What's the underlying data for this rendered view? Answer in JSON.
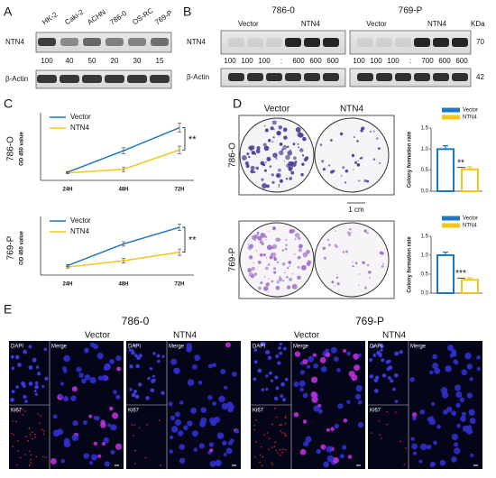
{
  "panel_labels": [
    "A",
    "B",
    "C",
    "D",
    "E"
  ],
  "blot_a": {
    "lanes": [
      "HK-2",
      "Caki-2",
      "ACHN",
      "786-0",
      "OS-RC",
      "769-P"
    ],
    "rows": [
      "NTN4",
      "β-Actin"
    ],
    "quant": [
      100,
      40,
      50,
      20,
      30,
      15
    ]
  },
  "blot_b": {
    "groups": [
      {
        "cell": "786-0",
        "conditions": [
          "Vector",
          "NTN4"
        ],
        "quant": [
          100,
          100,
          100,
          600,
          600,
          600
        ],
        "separator": ":"
      },
      {
        "cell": "769-P",
        "conditions": [
          "Vector",
          "NTN4"
        ],
        "quant": [
          100,
          100,
          100,
          700,
          600,
          600
        ],
        "separator": ":"
      }
    ],
    "rows": [
      "NTN4",
      "β-Actin"
    ],
    "unit": "KDa",
    "sizes": [
      70,
      42
    ]
  },
  "chart_data": [
    {
      "type": "line",
      "cell": "786-O",
      "ylabel": "OD 450 value",
      "categories": [
        "24H",
        "48H",
        "72H"
      ],
      "ylim": [
        0.2,
        1.9
      ],
      "annotation": "**",
      "series": [
        {
          "name": "Vector",
          "color": "#1f77c4",
          "values": [
            0.42,
            1.0,
            1.62
          ],
          "errors": [
            0.02,
            0.08,
            0.12
          ]
        },
        {
          "name": "NTN4",
          "color": "#f5c518",
          "values": [
            0.4,
            0.5,
            1.02
          ],
          "errors": [
            0.02,
            0.06,
            0.1
          ]
        }
      ]
    },
    {
      "type": "line",
      "cell": "769-P",
      "ylabel": "OD 450 value",
      "categories": [
        "24H",
        "48H",
        "72H"
      ],
      "ylim": [
        0.3,
        2.0
      ],
      "annotation": "**",
      "series": [
        {
          "name": "Vector",
          "color": "#1f77c4",
          "values": [
            0.6,
            1.28,
            1.8
          ],
          "errors": [
            0.03,
            0.07,
            0.1
          ]
        },
        {
          "name": "NTN4",
          "color": "#f5c518",
          "values": [
            0.55,
            0.75,
            1.02
          ],
          "errors": [
            0.03,
            0.07,
            0.1
          ]
        }
      ]
    },
    {
      "type": "bar",
      "ylabel": "Colony formation rate",
      "ylim": [
        0,
        1.5
      ],
      "annotation": "**",
      "yticks": [
        {
          "value": 0,
          "label": "0.0"
        },
        {
          "value": 0.5,
          "label": "0.5"
        },
        {
          "value": 1,
          "label": "1.0"
        },
        {
          "value": 1.5,
          "label": "1.5"
        }
      ],
      "series": [
        {
          "name": "Vector",
          "color": "#1f77c4",
          "values": [
            1.0
          ],
          "errors": [
            0.08
          ]
        },
        {
          "name": "NTN4",
          "color": "#f5c518",
          "values": [
            0.52
          ],
          "errors": [
            0.06
          ]
        }
      ]
    },
    {
      "type": "bar",
      "ylabel": "Colony formation rate",
      "ylim": [
        0,
        1.5
      ],
      "annotation": "***",
      "yticks": [
        {
          "value": 0,
          "label": "0.0"
        },
        {
          "value": 0.5,
          "label": "0.5"
        },
        {
          "value": 1,
          "label": "1.0"
        },
        {
          "value": 1.5,
          "label": "1.5"
        }
      ],
      "series": [
        {
          "name": "Vector",
          "color": "#1f77c4",
          "values": [
            1.0
          ],
          "errors": [
            0.08
          ]
        },
        {
          "name": "NTN4",
          "color": "#f5c518",
          "values": [
            0.35
          ],
          "errors": [
            0.05
          ]
        }
      ]
    }
  ],
  "plates": {
    "conditions": [
      "Vector",
      "NTN4"
    ],
    "cells": [
      "786-O",
      "769-P"
    ],
    "scale": "1 cm"
  },
  "if_panel": {
    "groups": [
      {
        "cell": "786-0",
        "conditions": [
          "Vector",
          "NTN4"
        ]
      },
      {
        "cell": "769-P",
        "conditions": [
          "Vector",
          "NTN4"
        ]
      }
    ],
    "channels": [
      "DAPI",
      "Merge",
      "Ki67"
    ]
  }
}
